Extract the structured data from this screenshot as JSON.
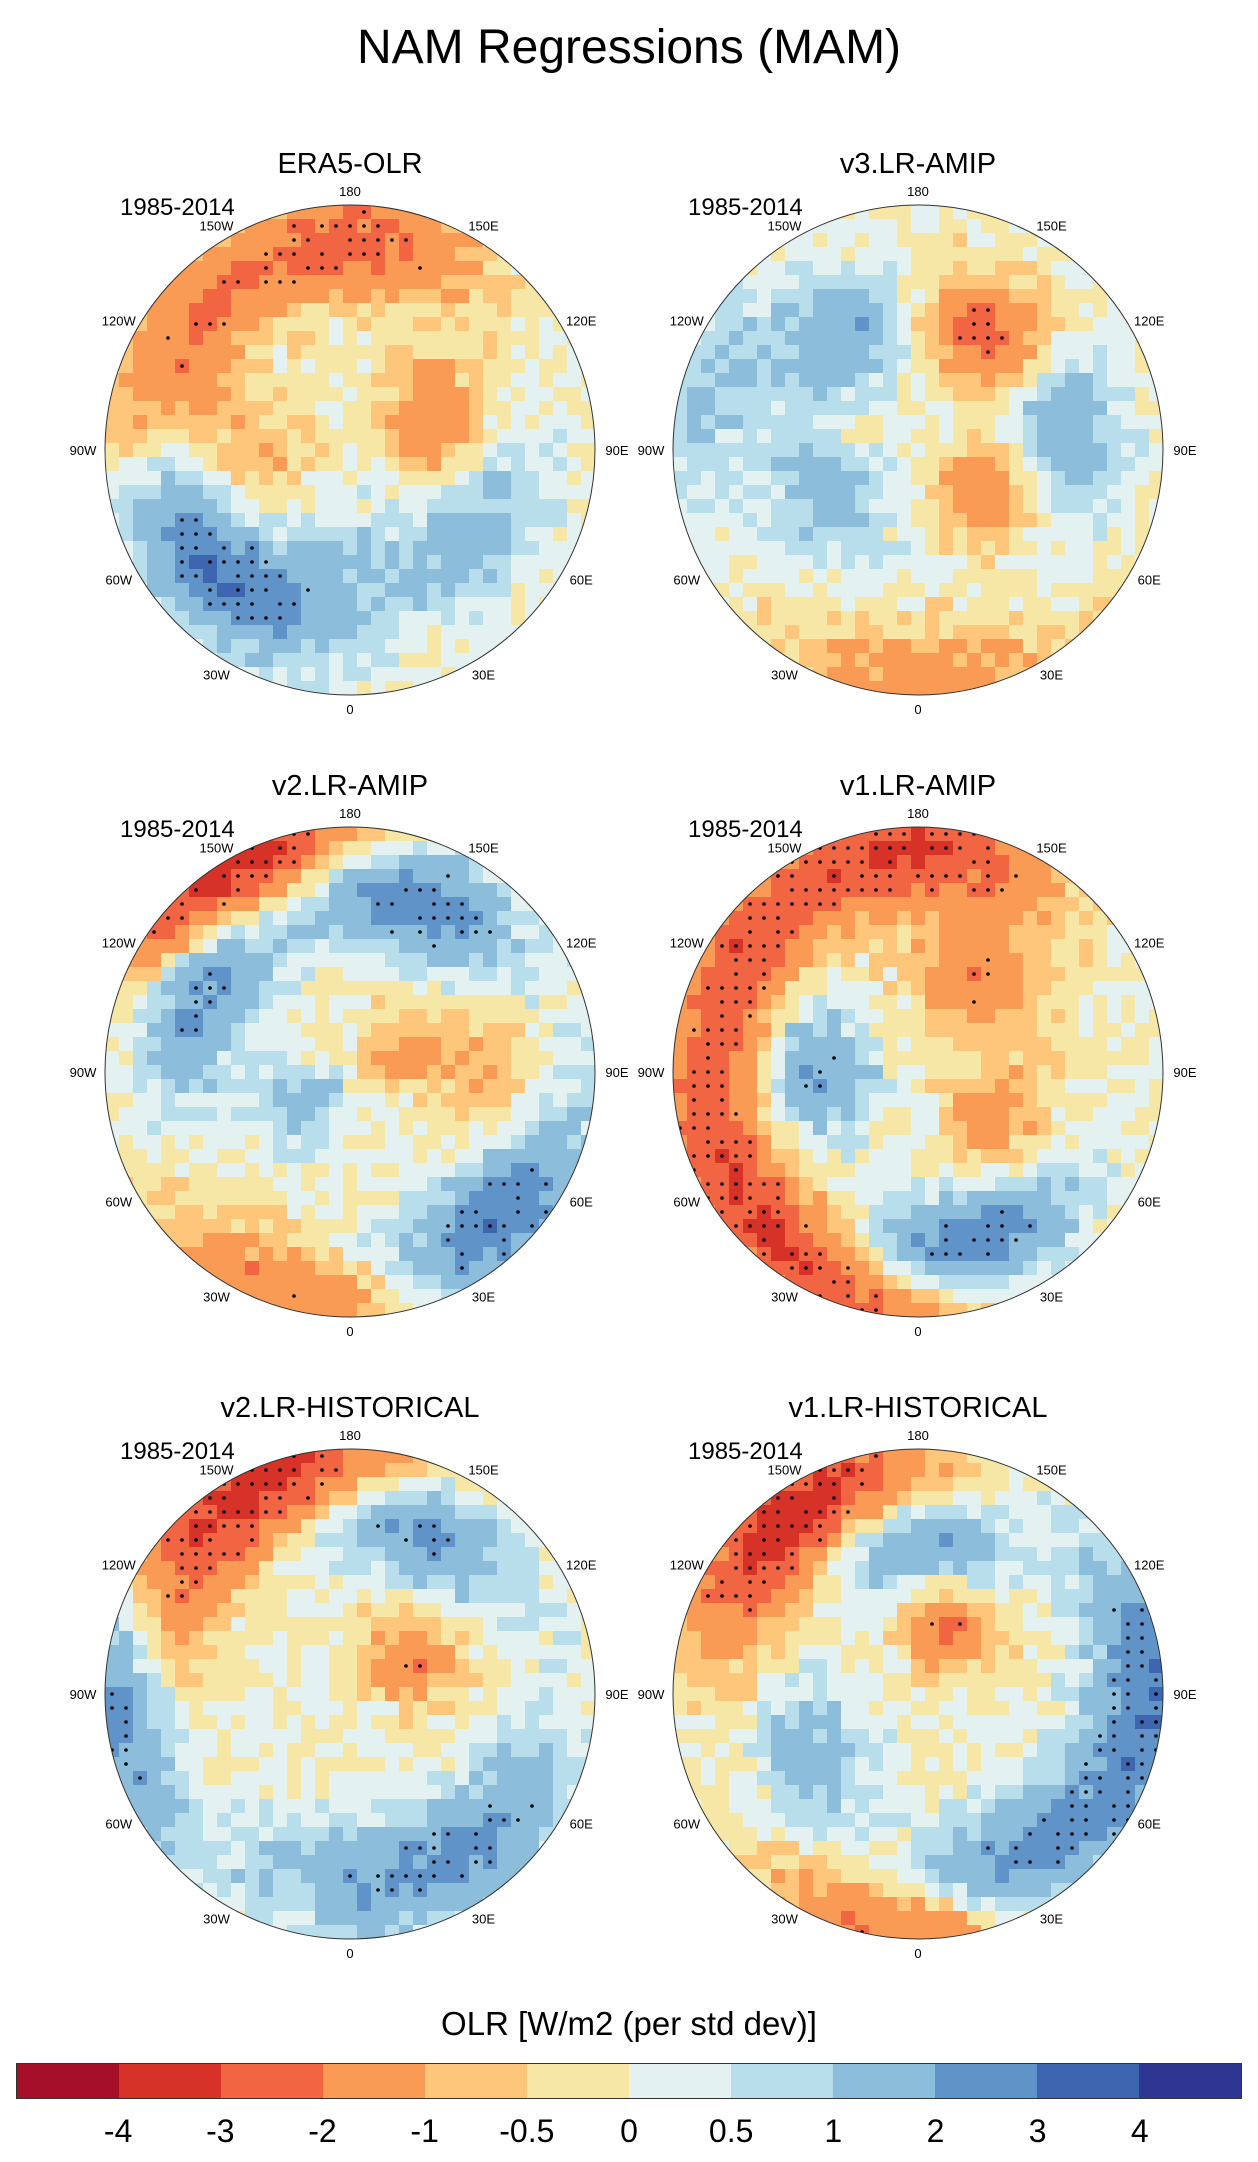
{
  "title": "NAM Regressions (MAM)",
  "chart_data": {
    "type": "heatmap",
    "projection": "polar stereographic (Northern Hemisphere)",
    "panels": [
      {
        "title": "ERA5-OLR",
        "period": "1985-2014",
        "pattern": [
          {
            "lon": 180,
            "r": 0.85,
            "v": -2.5
          },
          {
            "lon": 120,
            "r": 0.8,
            "v": -2
          },
          {
            "lon": 250,
            "r": 0.35,
            "v": -2
          },
          {
            "lon": 60,
            "r": 0.75,
            "v": 2
          },
          {
            "lon": 300,
            "r": 0.6,
            "v": 1.5
          },
          {
            "lon": 0,
            "r": 0.45,
            "v": 1
          },
          {
            "lon": 90,
            "r": 0.4,
            "v": -1
          },
          {
            "lon": 30,
            "r": 0.7,
            "v": 1.5
          }
        ]
      },
      {
        "title": "v3.LR-AMIP",
        "period": "1985-2014",
        "pattern": [
          {
            "lon": 210,
            "r": 0.55,
            "v": -2.5
          },
          {
            "lon": 150,
            "r": 0.55,
            "v": 2
          },
          {
            "lon": 260,
            "r": 0.6,
            "v": 2
          },
          {
            "lon": 300,
            "r": 0.3,
            "v": -2
          },
          {
            "lon": 0,
            "r": 0.95,
            "v": -1.5
          },
          {
            "lon": 60,
            "r": 0.4,
            "v": 1.5
          },
          {
            "lon": 100,
            "r": 0.9,
            "v": 1
          }
        ]
      },
      {
        "title": "v2.LR-AMIP",
        "period": "1985-2014",
        "pattern": [
          {
            "lon": 150,
            "r": 0.95,
            "v": -4
          },
          {
            "lon": 200,
            "r": 0.75,
            "v": 3
          },
          {
            "lon": 120,
            "r": 0.7,
            "v": 2.5
          },
          {
            "lon": 250,
            "r": 0.2,
            "v": -1.5
          },
          {
            "lon": 60,
            "r": 0.2,
            "v": 1.5
          },
          {
            "lon": 315,
            "r": 0.85,
            "v": 3
          },
          {
            "lon": 15,
            "r": 0.95,
            "v": -2
          },
          {
            "lon": 270,
            "r": 0.6,
            "v": -1
          }
        ]
      },
      {
        "title": "v1.LR-AMIP",
        "period": "1985-2014",
        "pattern": [
          {
            "lon": 180,
            "r": 0.9,
            "v": -3
          },
          {
            "lon": 120,
            "r": 0.85,
            "v": -2.5
          },
          {
            "lon": 90,
            "r": 0.4,
            "v": 2
          },
          {
            "lon": 210,
            "r": 0.45,
            "v": -2
          },
          {
            "lon": 300,
            "r": 0.35,
            "v": -1.5
          },
          {
            "lon": 345,
            "r": 0.75,
            "v": 3
          },
          {
            "lon": 15,
            "r": 0.95,
            "v": -2.5
          },
          {
            "lon": 60,
            "r": 0.85,
            "v": -2.5
          }
        ]
      },
      {
        "title": "v2.LR-HISTORICAL",
        "period": "1985-2014",
        "pattern": [
          {
            "lon": 165,
            "r": 0.95,
            "v": -3.5
          },
          {
            "lon": 200,
            "r": 0.75,
            "v": 2.5
          },
          {
            "lon": 120,
            "r": 0.85,
            "v": -2.5
          },
          {
            "lon": 240,
            "r": 0.25,
            "v": -2
          },
          {
            "lon": 90,
            "r": 0.95,
            "v": 3
          },
          {
            "lon": 0,
            "r": 0.75,
            "v": 1.5
          },
          {
            "lon": 315,
            "r": 0.8,
            "v": 2
          }
        ]
      },
      {
        "title": "v1.LR-HISTORICAL",
        "period": "1985-2014",
        "pattern": [
          {
            "lon": 150,
            "r": 0.9,
            "v": -3.5
          },
          {
            "lon": 180,
            "r": 0.6,
            "v": 2.5
          },
          {
            "lon": 200,
            "r": 0.3,
            "v": -2.5
          },
          {
            "lon": 270,
            "r": 0.95,
            "v": 3
          },
          {
            "lon": 330,
            "r": 0.8,
            "v": 3
          },
          {
            "lon": 0,
            "r": 0.95,
            "v": -2.5
          },
          {
            "lon": 60,
            "r": 0.5,
            "v": 1.5
          },
          {
            "lon": 120,
            "r": 0.75,
            "v": -1
          }
        ]
      }
    ],
    "longitude_labels": [
      "180",
      "150E",
      "120E",
      "90E",
      "60E",
      "30E",
      "0",
      "30W",
      "60W",
      "90W",
      "120W",
      "150W"
    ],
    "colorbar": {
      "title": "OLR [W/m2 (per std dev)]",
      "levels": [
        "-4",
        "-3",
        "-2",
        "-1",
        "-0.5",
        "0",
        "0.5",
        "1",
        "2",
        "3",
        "4"
      ],
      "colors": [
        "#a50f27",
        "#d73228",
        "#f16542",
        "#f99a55",
        "#fdc67a",
        "#f7e7a7",
        "#e3f2f0",
        "#b8deec",
        "#8cbedb",
        "#6094c8",
        "#3e66b0",
        "#2e3692"
      ],
      "stippling": "significant regions marked with dots"
    }
  }
}
